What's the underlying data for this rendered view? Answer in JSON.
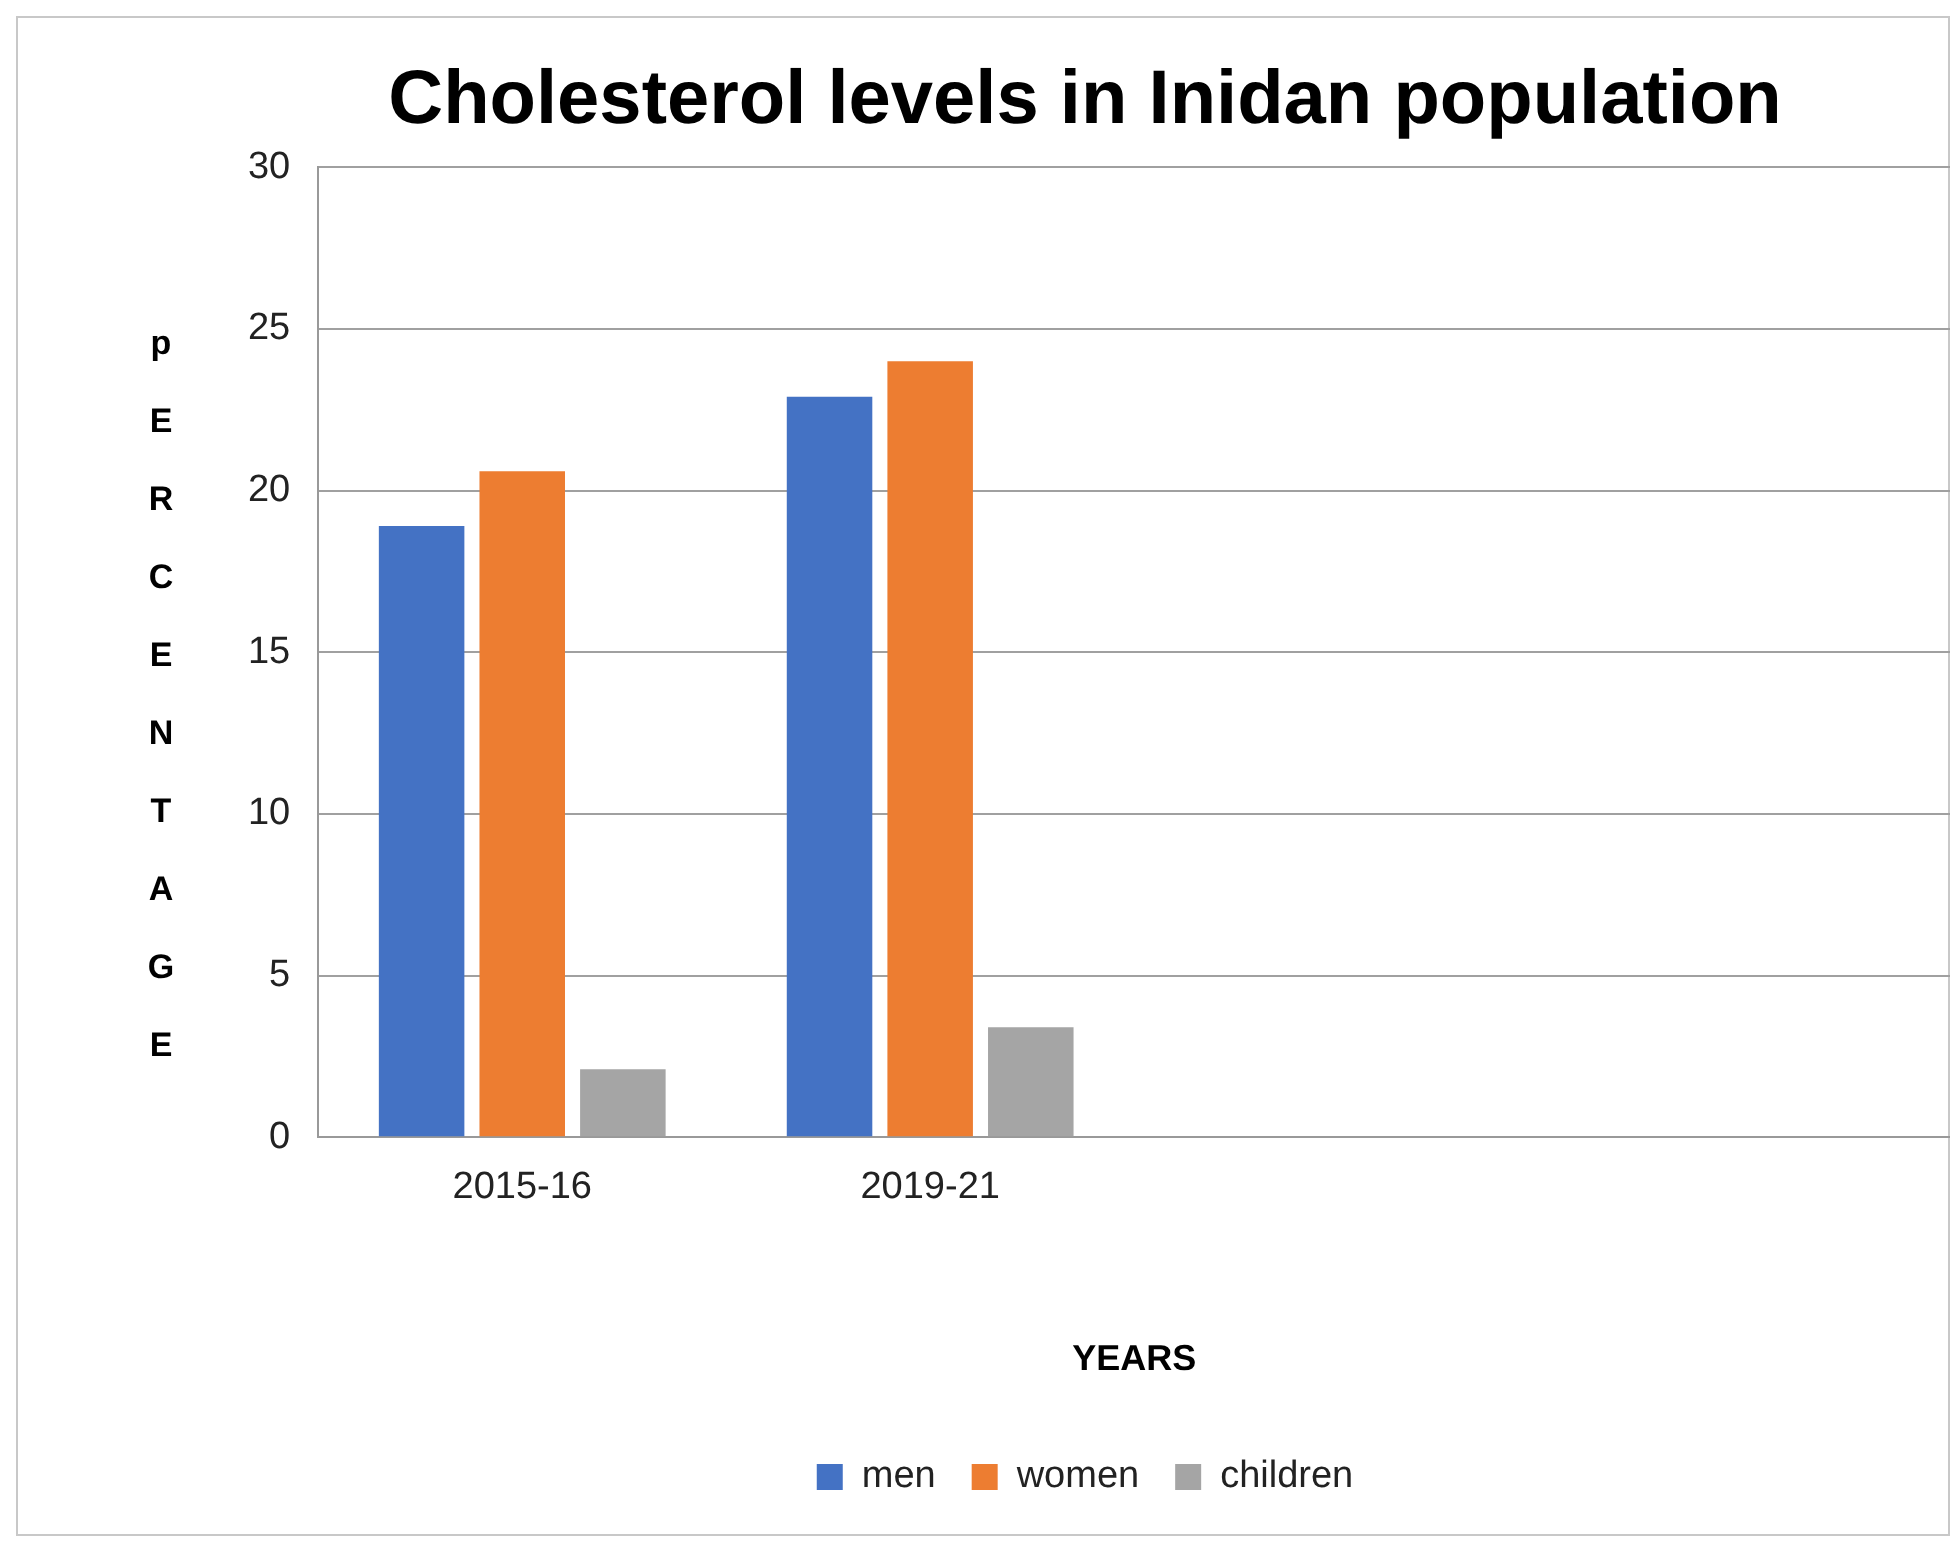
{
  "chart_data": {
    "type": "bar",
    "title": "Cholesterol levels in Inidan population",
    "xlabel": "YEARS",
    "ylabel": "pERCENTAGE",
    "categories": [
      "2015-16",
      "2019-21",
      null,
      null
    ],
    "series": [
      {
        "name": "men",
        "color": "#4472c4",
        "values": [
          18.9,
          22.9,
          null,
          null
        ]
      },
      {
        "name": "women",
        "color": "#ed7d31",
        "values": [
          20.6,
          24.0,
          null,
          null
        ]
      },
      {
        "name": "children",
        "color": "#a5a5a5",
        "values": [
          2.1,
          3.4,
          null,
          null
        ]
      }
    ],
    "ylim": [
      0,
      30
    ],
    "yticks": [
      0,
      5,
      10,
      15,
      20,
      25,
      30
    ],
    "grid": "y",
    "legend": "bottom"
  }
}
